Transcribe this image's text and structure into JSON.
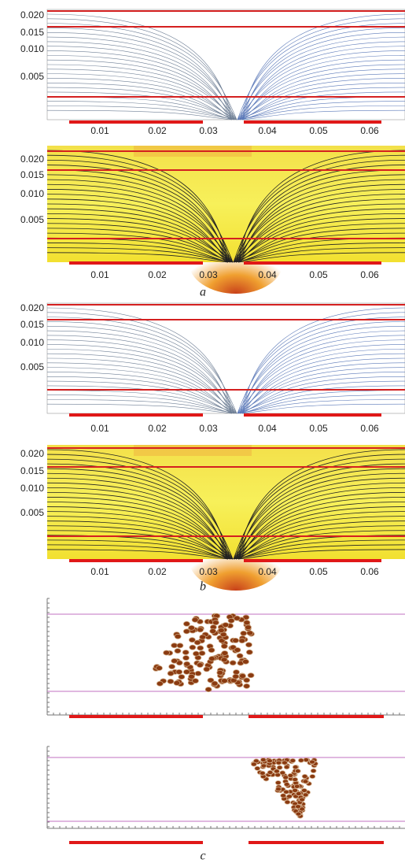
{
  "panels": [
    {
      "yticks": [
        "0.020",
        "0.015",
        "0.010",
        "0.005"
      ],
      "xticks": [
        "0.01",
        "0.02",
        "0.03",
        "0.04",
        "0.05",
        "0.06"
      ]
    },
    {
      "yticks": [
        "0.020",
        "0.015",
        "0.010",
        "0.005"
      ],
      "xticks": [
        "0.01",
        "0.02",
        "0.03",
        "0.04",
        "0.05",
        "0.06"
      ]
    },
    {
      "yticks": [
        "0.020",
        "0.015",
        "0.010",
        "0.005"
      ],
      "xticks": [
        "0.01",
        "0.02",
        "0.03",
        "0.04",
        "0.05",
        "0.06"
      ]
    },
    {
      "yticks": [
        "0.020",
        "0.015",
        "0.010",
        "0.005"
      ],
      "xticks": [
        "0.01",
        "0.02",
        "0.03",
        "0.04",
        "0.05",
        "0.06"
      ]
    }
  ],
  "labels": [
    "a",
    "b",
    "c"
  ]
}
